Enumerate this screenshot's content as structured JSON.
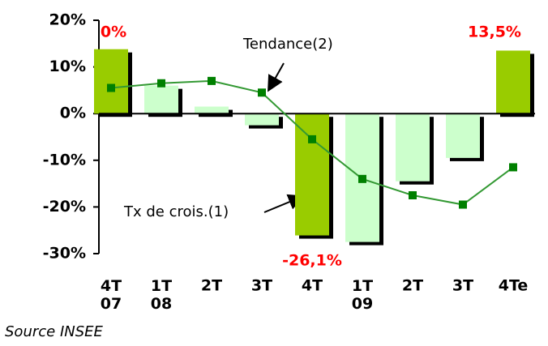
{
  "chart_data": {
    "type": "bar",
    "categories": [
      "4T 07",
      "1T 08",
      "2T",
      "3T",
      "4T",
      "1T 09",
      "2T",
      "3T",
      "4Te"
    ],
    "series": [
      {
        "name": "Tx de crois.(1)",
        "type": "bar",
        "colors": [
          "#99cc00",
          "#ccffcc",
          "#ccffcc",
          "#ccffcc",
          "#99cc00",
          "#ccffcc",
          "#ccffcc",
          "#ccffcc",
          "#99cc00"
        ],
        "values": [
          13.8,
          6,
          1.5,
          -2.5,
          -26.1,
          -27.5,
          -14.5,
          -9.5,
          13.5
        ]
      },
      {
        "name": "Tendance(2)",
        "type": "line",
        "color": "#339933",
        "values": [
          5.5,
          6.5,
          7,
          4.5,
          -5.5,
          -14,
          -17.5,
          -19.5,
          -11.5
        ]
      }
    ],
    "annotations": [
      "0%",
      "-26,1%",
      "13,5%"
    ],
    "ylim": [
      -30,
      20
    ],
    "yticks": [
      {
        "value": 20,
        "label": "20%"
      },
      {
        "value": 10,
        "label": "10%"
      },
      {
        "value": 0,
        "label": "0%"
      },
      {
        "value": -10,
        "label": "-10%"
      },
      {
        "value": -20,
        "label": "-20%"
      },
      {
        "value": -30,
        "label": "-30%"
      }
    ],
    "source": "Source INSEE"
  }
}
